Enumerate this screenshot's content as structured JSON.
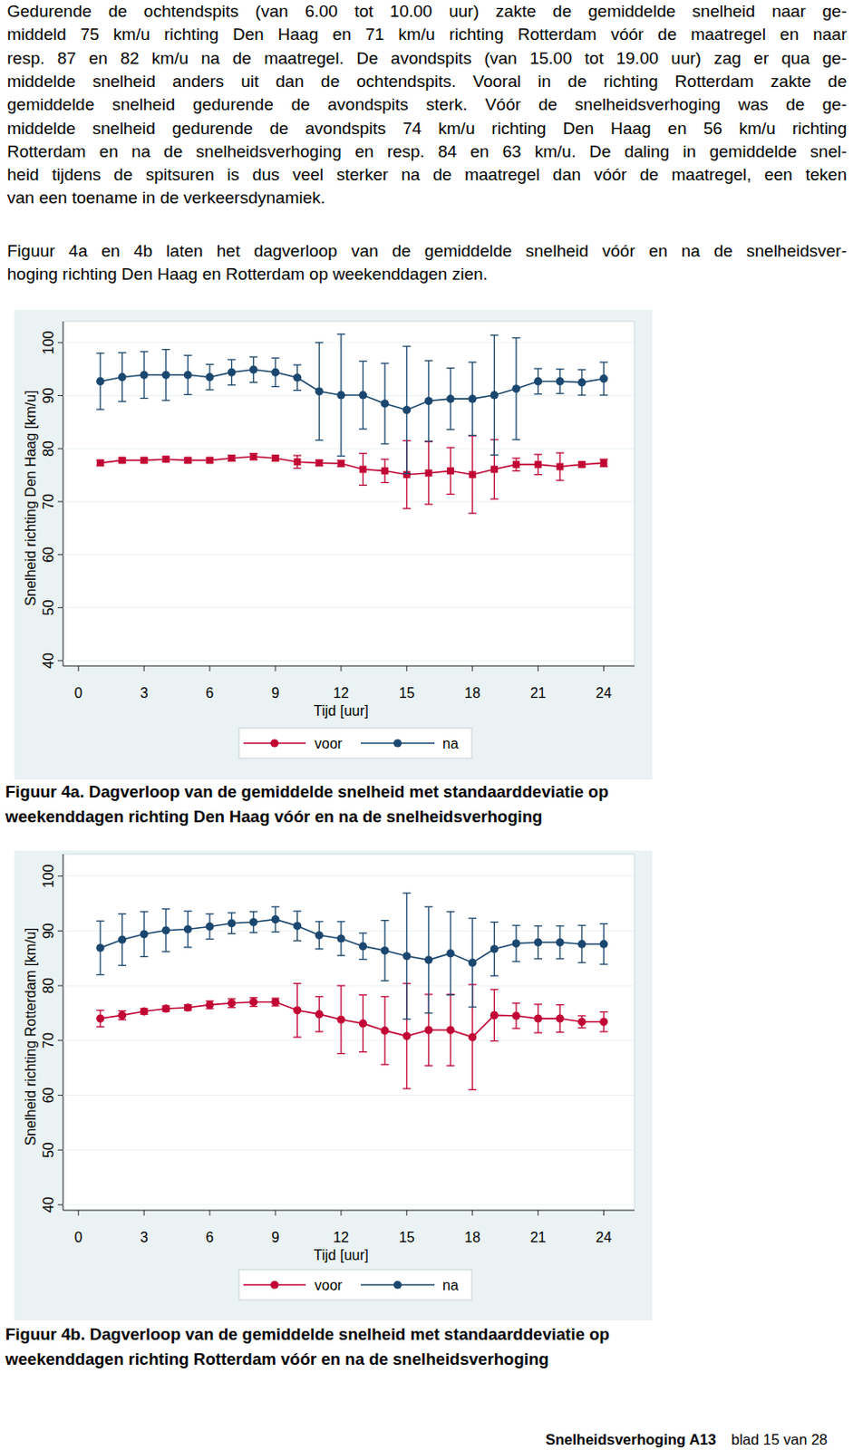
{
  "text": {
    "paragraphs": [
      [
        "Gedurende de ochtendspits (van 6.00 tot 10.00 uur) zakte de gemiddelde snelheid naar ge-",
        "middeld 75 km/u richting Den Haag en 71 km/u richting Rotterdam vóór de maatregel en naar",
        "resp. 87 en 82 km/u na de maatregel. De avondspits (van 15.00 tot 19.00 uur) zag er qua ge-",
        "middelde snelheid anders uit dan de ochtendspits. Vooral in de richting Rotterdam zakte de",
        "gemiddelde snelheid gedurende de avondspits sterk. Vóór de snelheidsverhoging was de ge-",
        "middelde snelheid gedurende de avondspits 74 km/u richting Den Haag en 56 km/u richting",
        "Rotterdam en na de snelheidsverhoging en resp. 84 en 63 km/u. De daling in gemiddelde snel-",
        "heid tijdens de spitsuren is dus veel sterker na de maatregel dan vóór de maatregel, een teken",
        "van een toename in de verkeersdynamiek."
      ],
      [
        "Figuur 4a en 4b laten het dagverloop van de gemiddelde snelheid vóór en na de snelheidsver-",
        "hoging richting Den Haag en Rotterdam op weekenddagen zien."
      ]
    ]
  },
  "chart_data": [
    {
      "type": "line",
      "title": "Figuur 4a. Dagverloop van de gemiddelde snelheid met standaarddeviatie op weekenddagen richting Den Haag vóór en na de snelheidsverhoging",
      "x_label": "Tijd [uur]",
      "y_label": "Snelheid richting Den Haag [km/u]",
      "x": [
        1,
        2,
        3,
        4,
        5,
        6,
        7,
        8,
        9,
        10,
        11,
        12,
        13,
        14,
        15,
        16,
        17,
        18,
        19,
        20,
        21,
        22,
        23,
        24
      ],
      "xlim": [
        -0.7,
        25.4
      ],
      "xticks": [
        0,
        3,
        6,
        9,
        12,
        15,
        18,
        21,
        24
      ],
      "ylim": [
        39,
        104
      ],
      "yticks": [
        40,
        50,
        60,
        70,
        80,
        90,
        100
      ],
      "grid": true,
      "legend": "bottom",
      "series": [
        {
          "name": "voor",
          "color": "#c10534",
          "marker": "square",
          "values": [
            77.3,
            77.8,
            77.8,
            78.0,
            77.8,
            77.8,
            78.2,
            78.5,
            78.2,
            77.5,
            77.3,
            77.2,
            76.1,
            75.8,
            75.1,
            75.4,
            75.8,
            75.1,
            76.1,
            77.0,
            77.0,
            76.6,
            77.0,
            77.3
          ],
          "sd": [
            0.5,
            0.4,
            0.4,
            0.4,
            0.4,
            0.4,
            0.5,
            0.6,
            0.5,
            1.2,
            0.5,
            0.6,
            3.0,
            2.2,
            6.4,
            5.9,
            4.4,
            7.3,
            5.6,
            1.2,
            1.9,
            2.6,
            0.4,
            0.7
          ]
        },
        {
          "name": "na",
          "color": "#1a476f",
          "marker": "circle",
          "values": [
            92.7,
            93.5,
            93.9,
            93.9,
            93.9,
            93.5,
            94.4,
            94.9,
            94.4,
            93.4,
            90.8,
            90.1,
            90.1,
            88.5,
            87.3,
            89.0,
            89.4,
            89.4,
            90.1,
            91.3,
            92.7,
            92.7,
            92.5,
            93.2
          ],
          "sd": [
            5.3,
            4.6,
            4.4,
            4.8,
            3.7,
            2.4,
            2.4,
            2.4,
            2.7,
            2.4,
            9.2,
            11.5,
            6.4,
            7.6,
            12.0,
            7.6,
            5.8,
            6.9,
            11.3,
            9.6,
            2.4,
            2.3,
            2.4,
            3.1
          ]
        }
      ]
    },
    {
      "type": "line",
      "title": "Figuur 4b. Dagverloop van de gemiddelde snelheid met standaarddeviatie op weekenddagen richting Rotterdam vóór en na de snelheidsverhoging",
      "x_label": "Tijd [uur]",
      "y_label": "Snelheid richting Rotterdam [km/u]",
      "x": [
        1,
        2,
        3,
        4,
        5,
        6,
        7,
        8,
        9,
        10,
        11,
        12,
        13,
        14,
        15,
        16,
        17,
        18,
        19,
        20,
        21,
        22,
        23,
        24
      ],
      "xlim": [
        -0.7,
        25.4
      ],
      "xticks": [
        0,
        3,
        6,
        9,
        12,
        15,
        18,
        21,
        24
      ],
      "ylim": [
        39,
        104
      ],
      "yticks": [
        40,
        50,
        60,
        70,
        80,
        90,
        100
      ],
      "grid": true,
      "legend": "bottom",
      "series": [
        {
          "name": "voor",
          "color": "#c10534",
          "marker": "circle",
          "values": [
            74.0,
            74.6,
            75.3,
            75.8,
            76.0,
            76.5,
            76.8,
            77.0,
            77.0,
            75.5,
            74.8,
            73.8,
            73.1,
            71.8,
            70.8,
            71.9,
            71.9,
            70.6,
            74.6,
            74.5,
            74.0,
            74.0,
            73.4,
            73.4
          ],
          "sd": [
            1.5,
            0.8,
            0.5,
            0.5,
            0.5,
            0.7,
            0.8,
            0.8,
            0.7,
            4.9,
            3.2,
            6.2,
            5.2,
            6.2,
            9.6,
            6.5,
            6.5,
            9.6,
            4.7,
            2.3,
            2.6,
            2.5,
            1.1,
            1.8
          ]
        },
        {
          "name": "na",
          "color": "#1a476f",
          "marker": "circle",
          "values": [
            86.9,
            88.4,
            89.4,
            90.1,
            90.3,
            90.8,
            91.4,
            91.6,
            92.1,
            90.9,
            89.2,
            88.6,
            87.2,
            86.4,
            85.4,
            84.7,
            85.9,
            84.2,
            86.7,
            87.7,
            87.9,
            87.9,
            87.6,
            87.6
          ],
          "sd": [
            4.9,
            4.7,
            4.1,
            3.9,
            3.3,
            2.3,
            1.9,
            1.9,
            2.3,
            2.7,
            2.5,
            3.1,
            2.4,
            5.5,
            11.5,
            9.7,
            7.6,
            8.1,
            4.9,
            3.3,
            3.0,
            3.0,
            3.4,
            3.7
          ]
        }
      ]
    }
  ],
  "footer": {
    "report": "Snelheidsverhoging A13",
    "page": "blad 15 van 28"
  }
}
